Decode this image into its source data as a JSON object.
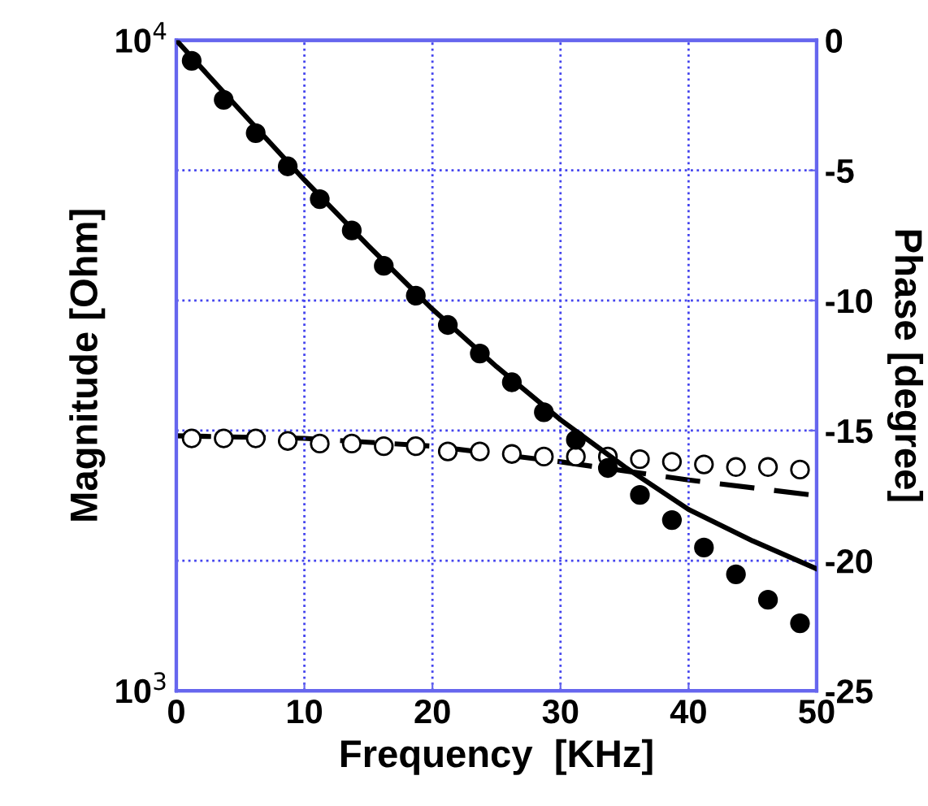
{
  "chart_data": {
    "type": "scatter",
    "xlabel": "Frequency  [KHz]",
    "ylabel": "Magnitude [Ohm]",
    "y2label": "Phase [degree]",
    "xlim": [
      0,
      50
    ],
    "xticks": [
      0,
      10,
      20,
      30,
      40,
      50
    ],
    "log": "y",
    "ylim": [
      1000,
      10000
    ],
    "yticks": [
      {
        "value": 1000,
        "label": "10$^{3}$"
      },
      {
        "value": 10000,
        "label": "10$^{4}$"
      }
    ],
    "y2lim": [
      -25,
      0
    ],
    "y2ticks": [
      -25,
      -20,
      -15,
      -10,
      -5,
      0
    ],
    "grid": true,
    "series": [
      {
        "marker": "circle",
        "color": "#000000",
        "x": [
          1.2,
          3.7,
          6.2,
          8.7,
          11.2,
          13.7,
          16.2,
          18.7,
          21.2,
          23.7,
          26.2,
          28.7,
          31.2,
          33.7,
          36.2,
          38.7,
          41.2,
          43.7,
          46.2,
          48.7
        ],
        "values": [
          9300,
          8100,
          7200,
          6400,
          5700,
          5100,
          4500,
          4050,
          3650,
          3300,
          2980,
          2680,
          2430,
          2200,
          2000,
          1830,
          1660,
          1510,
          1380,
          1270
        ]
      },
      {
        "type": "line",
        "line_style": "solid",
        "color": "#000000",
        "x": [
          0,
          5,
          10,
          15,
          20,
          25,
          30,
          35,
          40,
          45,
          50
        ],
        "values": [
          10000,
          7800,
          6100,
          4830,
          3860,
          3150,
          2610,
          2210,
          1900,
          1700,
          1540
        ]
      },
      {
        "marker": "circle",
        "axis": "y2",
        "color": "#000000",
        "x": [
          1.2,
          3.7,
          6.2,
          8.7,
          11.2,
          13.7,
          16.2,
          18.7,
          21.2,
          23.7,
          26.2,
          28.7,
          31.2,
          33.7,
          36.2,
          38.7,
          41.2,
          43.7,
          46.2,
          48.7
        ],
        "values": [
          -15.3,
          -15.3,
          -15.3,
          -15.4,
          -15.5,
          -15.5,
          -15.6,
          -15.6,
          -15.8,
          -15.8,
          -15.9,
          -16.0,
          -16.0,
          -16.0,
          -16.1,
          -16.2,
          -16.3,
          -16.4,
          -16.4,
          -16.5
        ]
      },
      {
        "type": "line",
        "line_style": "dashed",
        "axis": "y2",
        "color": "#000000",
        "x": [
          0,
          10,
          20,
          30,
          40,
          50
        ],
        "values": [
          -15.2,
          -15.3,
          -15.6,
          -16.2,
          -16.9,
          -17.5
        ]
      }
    ]
  }
}
